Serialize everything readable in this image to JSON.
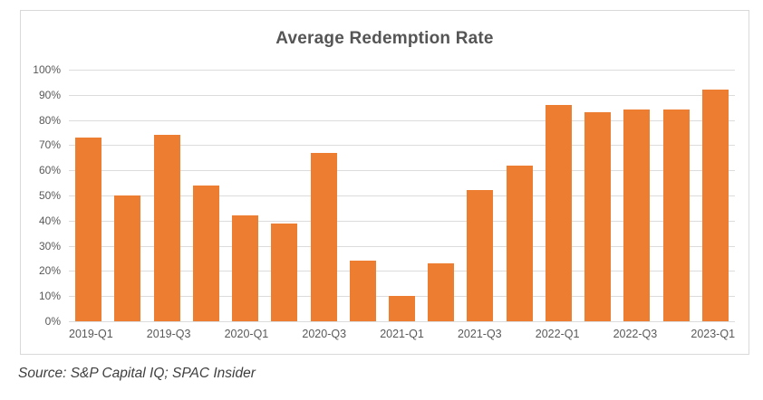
{
  "title": "Average Redemption Rate",
  "source": "Source: S&P Capital IQ; SPAC Insider",
  "colors": {
    "bar": "#ED7D31",
    "gridline": "#DCDCDC",
    "frame_border": "#D9D9D9",
    "title_text": "#555555",
    "axis_text": "#595959",
    "source_text": "#3F3F3F"
  },
  "chart_data": {
    "type": "bar",
    "title": "Average Redemption Rate",
    "categories": [
      "2019-Q1",
      "2019-Q2",
      "2019-Q3",
      "2019-Q4",
      "2020-Q1",
      "2020-Q2",
      "2020-Q3",
      "2020-Q4",
      "2021-Q1",
      "2021-Q2",
      "2021-Q3",
      "2021-Q4",
      "2022-Q1",
      "2022-Q2",
      "2022-Q3",
      "2022-Q4",
      "2023-Q1"
    ],
    "values": [
      73,
      50,
      74,
      54,
      42,
      39,
      67,
      24,
      10,
      23,
      52,
      62,
      86,
      83,
      84,
      84,
      92
    ],
    "y_tick_labels": [
      "100%",
      "90%",
      "80%",
      "70%",
      "60%",
      "50%",
      "40%",
      "30%",
      "20%",
      "10%",
      "0%"
    ],
    "x_tick_labels": [
      "2019-Q1",
      "2019-Q3",
      "2020-Q1",
      "2020-Q3",
      "2021-Q1",
      "2021-Q3",
      "2022-Q1",
      "2022-Q3",
      "2023-Q1"
    ],
    "x_tick_every": 2,
    "ylim": [
      0,
      100
    ],
    "ylabel": "",
    "xlabel": "",
    "grid": true,
    "legend": false,
    "bar_color": "#ED7D31"
  }
}
